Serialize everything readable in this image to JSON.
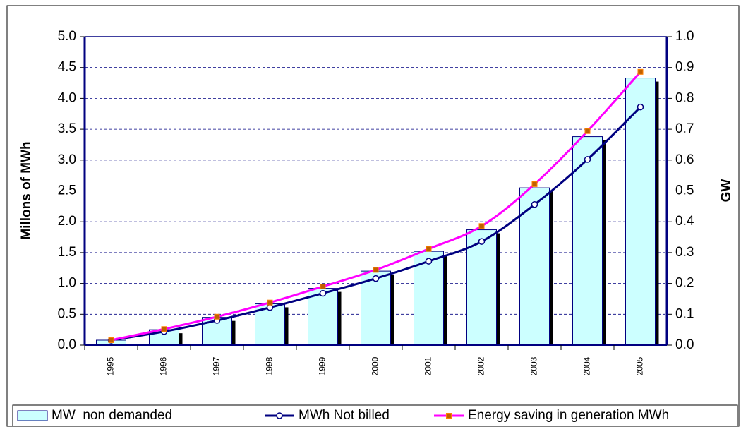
{
  "chart_data": {
    "type": "bar-line",
    "ylabel": "Millons of MWh",
    "y2label": "GW",
    "categories": [
      "1995",
      "1996",
      "1997",
      "1998",
      "1999",
      "2000",
      "2001",
      "2002",
      "2003",
      "2004",
      "2005"
    ],
    "series": [
      {
        "name": "MW  non demanded",
        "type": "bar",
        "axis": "y2",
        "color": "#ccffff",
        "values": [
          0.016,
          0.05,
          0.09,
          0.134,
          0.184,
          0.24,
          0.304,
          0.374,
          0.51,
          0.676,
          0.866
        ]
      },
      {
        "name": "MWh Not billed",
        "type": "line",
        "color": "#000080",
        "values": [
          0.08,
          0.22,
          0.4,
          0.61,
          0.84,
          1.08,
          1.36,
          1.68,
          2.28,
          3.01,
          3.86
        ]
      },
      {
        "name": "Energy saving in generation MWh",
        "type": "line",
        "color": "#ff00ff",
        "values": [
          0.08,
          0.26,
          0.46,
          0.69,
          0.95,
          1.22,
          1.56,
          1.93,
          2.61,
          3.47,
          4.43
        ]
      }
    ],
    "ylim": [
      0,
      5
    ],
    "yticks": [
      {
        "value": 0,
        "label": "0.0"
      },
      0.5,
      {
        "value": 1,
        "label": "1.0"
      },
      1.5,
      {
        "value": 2,
        "label": "2.0"
      },
      2.5,
      {
        "value": 3,
        "label": "3.0"
      },
      3.5,
      {
        "value": 4,
        "label": "4.0"
      },
      4.5,
      {
        "value": 5,
        "label": "5.0"
      }
    ],
    "y2lim": [
      0,
      1
    ],
    "y2ticks": [
      {
        "value": 0,
        "label": "0.0"
      },
      0.1,
      0.2,
      0.3,
      0.4,
      0.5,
      0.6,
      0.7,
      0.8,
      0.9,
      {
        "value": 1,
        "label": "1.0"
      }
    ],
    "grid": true,
    "legend": "bottom"
  }
}
